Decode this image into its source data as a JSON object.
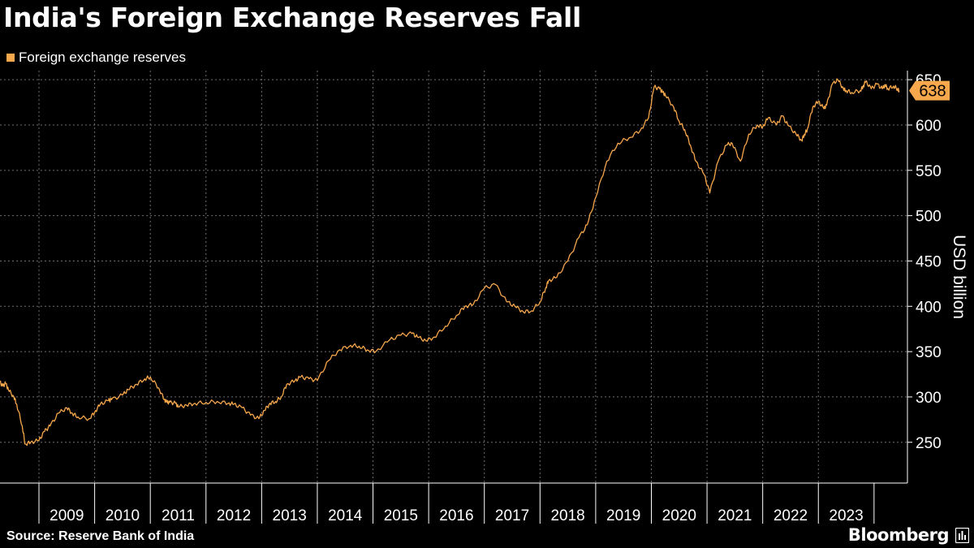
{
  "colors": {
    "background": "#000000",
    "series": "#f7a74c",
    "grid": "#6e6e6e",
    "text": "#ffffff",
    "label_text": "#000000"
  },
  "source_label": "Source: Reserve Bank of India",
  "brand": "Bloomberg",
  "brand_icon": "bloomberg-terminal-icon",
  "chart_data": {
    "type": "line",
    "title": "India's Foreign Exchange Reserves Fall",
    "legend": [
      "Foreign exchange reserves"
    ],
    "legend_position": "top-left",
    "xlabel": "",
    "ylabel": "USD billion",
    "y_axis_side": "right",
    "ylim": [
      205,
      660
    ],
    "yticks": [
      250,
      300,
      350,
      400,
      450,
      500,
      550,
      600,
      650
    ],
    "xlim": [
      2008.3,
      2024.6
    ],
    "xticks": [
      "2009",
      "2010",
      "2011",
      "2012",
      "2013",
      "2014",
      "2015",
      "2016",
      "2017",
      "2018",
      "2019",
      "2020",
      "2021",
      "2022",
      "2023"
    ],
    "grid": true,
    "last_value_label": "638",
    "series": [
      {
        "name": "Foreign exchange reserves",
        "x": [
          2008.3,
          2008.35,
          2008.4,
          2008.45,
          2008.55,
          2008.6,
          2008.7,
          2008.75,
          2008.85,
          2009.0,
          2009.1,
          2009.2,
          2009.35,
          2009.5,
          2009.6,
          2009.7,
          2009.9,
          2010.0,
          2010.1,
          2010.25,
          2010.3,
          2010.5,
          2010.6,
          2010.75,
          2010.9,
          2011.0,
          2011.15,
          2011.25,
          2011.3,
          2011.35,
          2011.45,
          2011.5,
          2011.65,
          2011.8,
          2012.0,
          2012.2,
          2012.4,
          2012.5,
          2012.65,
          2012.8,
          2012.95,
          2013.05,
          2013.15,
          2013.25,
          2013.35,
          2013.45,
          2013.6,
          2013.7,
          2013.85,
          2014.0,
          2014.2,
          2014.4,
          2014.6,
          2014.75,
          2014.9,
          2015.05,
          2015.3,
          2015.5,
          2015.7,
          2015.8,
          2015.95,
          2016.1,
          2016.3,
          2016.5,
          2016.65,
          2016.8,
          2017.0,
          2017.2,
          2017.4,
          2017.55,
          2017.7,
          2017.85,
          2018.0,
          2018.1,
          2018.15,
          2018.3,
          2018.5,
          2018.7,
          2018.85,
          2019.0,
          2019.2,
          2019.4,
          2019.6,
          2019.8,
          2019.95,
          2020.05,
          2020.15,
          2020.2,
          2020.25,
          2020.4,
          2020.5,
          2020.6,
          2020.7,
          2020.8,
          2020.95,
          2021.05,
          2021.2,
          2021.35,
          2021.45,
          2021.6,
          2021.75,
          2021.9,
          2022.0,
          2022.1,
          2022.25,
          2022.35,
          2022.45,
          2022.6,
          2022.7,
          2022.75,
          2022.8,
          2022.9,
          2023.0,
          2023.1,
          2023.15,
          2023.25,
          2023.35,
          2023.45,
          2023.5,
          2023.6,
          2023.75,
          2023.8,
          2023.85,
          2023.95,
          2024.05,
          2024.15,
          2024.2,
          2024.25,
          2024.35,
          2024.42,
          2024.45
        ],
        "values": [
          316,
          312,
          315,
          308,
          300,
          292,
          268,
          248,
          250,
          252,
          262,
          268,
          282,
          288,
          282,
          278,
          276,
          283,
          292,
          296,
          297,
          302,
          308,
          314,
          320,
          322,
          310,
          297,
          294,
          294,
          293,
          289,
          291,
          293,
          294,
          295,
          293,
          292,
          288,
          280,
          276,
          285,
          293,
          295,
          300,
          314,
          318,
          322,
          320,
          318,
          340,
          352,
          357,
          356,
          352,
          350,
          363,
          368,
          370,
          366,
          362,
          366,
          378,
          390,
          400,
          402,
          420,
          424,
          405,
          400,
          394,
          395,
          405,
          420,
          428,
          432,
          450,
          476,
          490,
          520,
          560,
          580,
          586,
          594,
          608,
          642,
          640,
          636,
          633,
          620,
          604,
          595,
          578,
          560,
          545,
          525,
          560,
          578,
          580,
          560,
          590,
          600,
          598,
          608,
          600,
          610,
          600,
          590,
          583,
          590,
          595,
          620,
          626,
          618,
          622,
          645,
          650,
          640,
          638,
          636,
          638,
          642,
          648,
          640,
          645,
          640,
          644,
          640,
          643,
          640,
          638
        ]
      }
    ]
  }
}
